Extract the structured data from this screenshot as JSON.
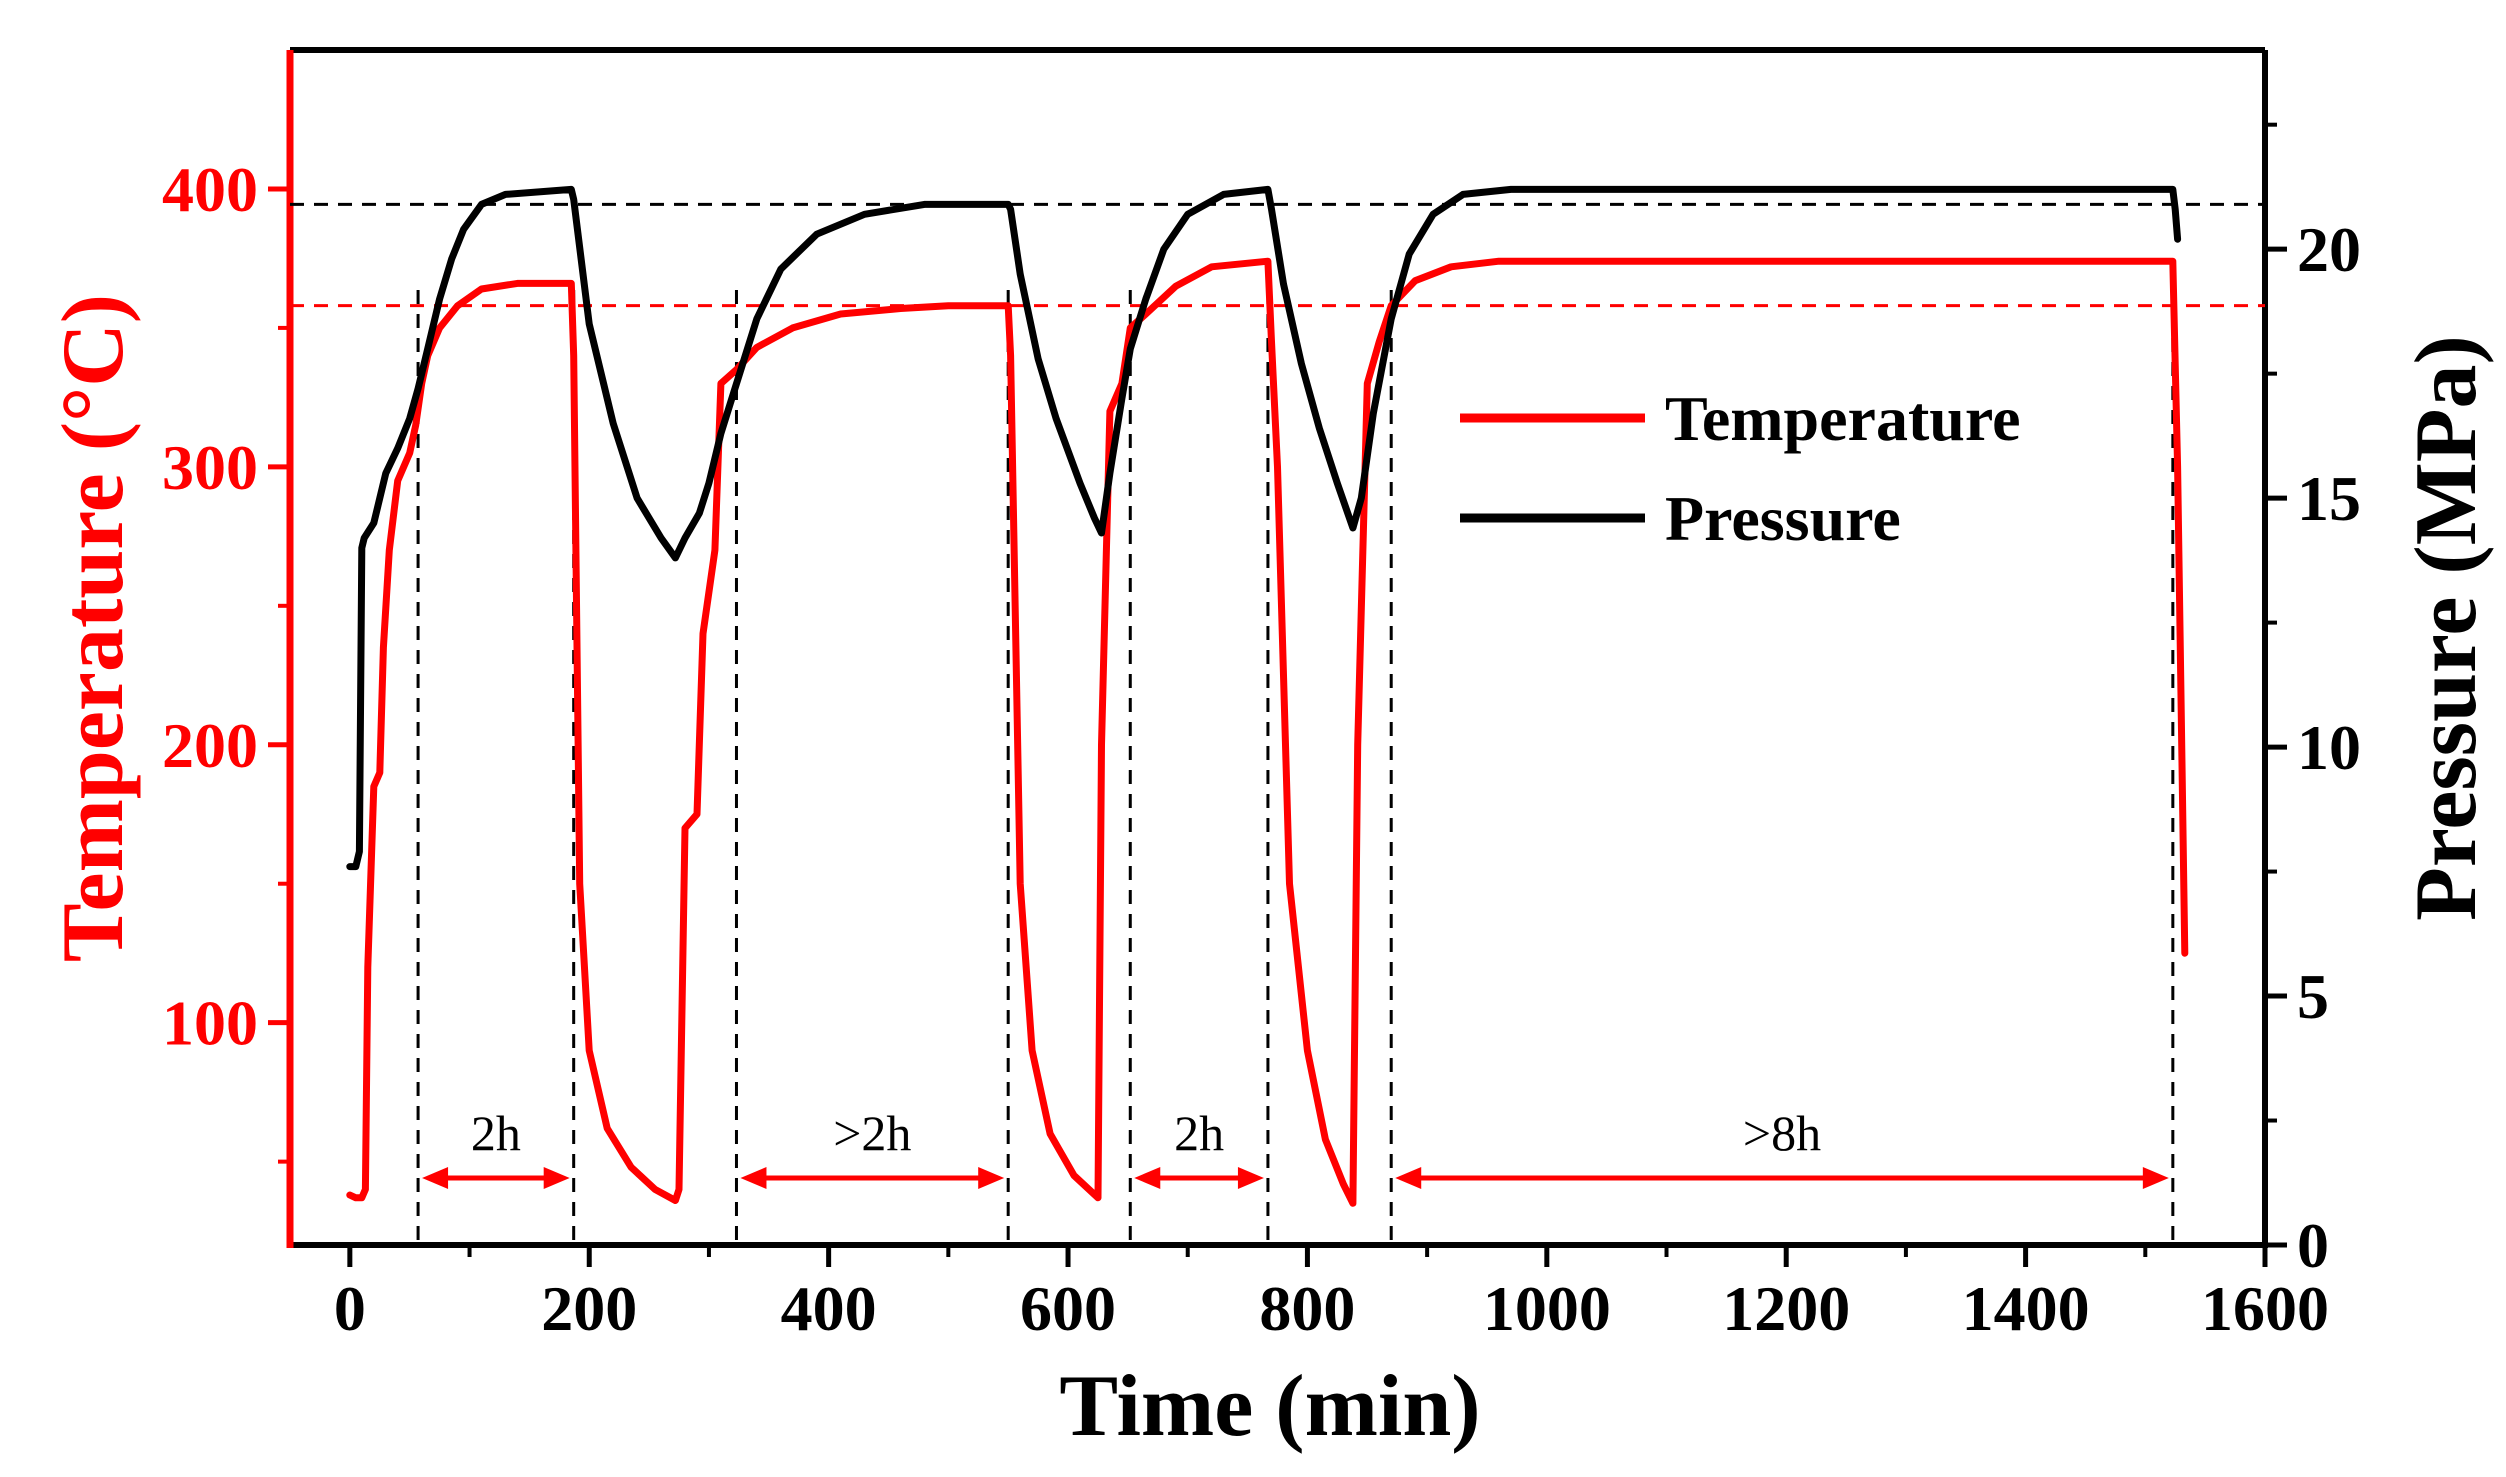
{
  "chart_data": {
    "type": "line",
    "xlabel": "Time (min)",
    "ylabel_left": "Temperature (°C)",
    "ylabel_right": "Pressure (MPa)",
    "xlim": [
      -50,
      1600
    ],
    "ylim_left": [
      20,
      450
    ],
    "ylim_right": [
      0,
      24
    ],
    "x_ticks": [
      0,
      200,
      400,
      600,
      800,
      1000,
      1200,
      1400,
      1600
    ],
    "y_left_ticks": [
      100,
      200,
      300,
      400
    ],
    "y_right_ticks": [
      0,
      5,
      10,
      15,
      20
    ],
    "colors": {
      "temperature": "#ff0000",
      "pressure": "#000000",
      "axes": "#000000",
      "left_axis": "#ff0000"
    },
    "legend": {
      "position": "upper-right-inner",
      "entries": [
        "Temperature",
        "Pressure"
      ]
    },
    "reference_lines": [
      {
        "axis": "left",
        "value": 358,
        "color": "#ff0000",
        "style": "dashed"
      },
      {
        "axis": "right",
        "value": 20.9,
        "color": "#000000",
        "style": "dashed"
      }
    ],
    "marker_lines_x": [
      57,
      187,
      323,
      550,
      652,
      767,
      870,
      1523
    ],
    "annotations": [
      {
        "label": "2h",
        "x_start": 57,
        "x_end": 187
      },
      {
        "label": ">2h",
        "x_start": 323,
        "x_end": 550
      },
      {
        "label": "2h",
        "x_start": 652,
        "x_end": 767
      },
      {
        "label": ">8h",
        "x_start": 870,
        "x_end": 1523
      }
    ],
    "series": [
      {
        "name": "Temperature",
        "axis": "left",
        "points": [
          [
            0,
            38
          ],
          [
            5,
            37
          ],
          [
            10,
            37
          ],
          [
            13,
            40
          ],
          [
            15,
            120
          ],
          [
            20,
            185
          ],
          [
            25,
            190
          ],
          [
            28,
            235
          ],
          [
            33,
            270
          ],
          [
            40,
            295
          ],
          [
            50,
            305
          ],
          [
            55,
            315
          ],
          [
            60,
            330
          ],
          [
            65,
            340
          ],
          [
            75,
            350
          ],
          [
            90,
            358
          ],
          [
            110,
            364
          ],
          [
            140,
            366
          ],
          [
            185,
            366
          ],
          [
            187,
            340
          ],
          [
            192,
            150
          ],
          [
            200,
            90
          ],
          [
            215,
            62
          ],
          [
            235,
            48
          ],
          [
            255,
            40
          ],
          [
            272,
            36
          ],
          [
            275,
            40
          ],
          [
            280,
            170
          ],
          [
            290,
            175
          ],
          [
            295,
            240
          ],
          [
            305,
            270
          ],
          [
            310,
            330
          ],
          [
            323,
            335
          ],
          [
            340,
            343
          ],
          [
            370,
            350
          ],
          [
            410,
            355
          ],
          [
            460,
            357
          ],
          [
            500,
            358
          ],
          [
            550,
            358
          ],
          [
            552,
            340
          ],
          [
            560,
            150
          ],
          [
            570,
            90
          ],
          [
            585,
            60
          ],
          [
            605,
            45
          ],
          [
            625,
            37
          ],
          [
            628,
            200
          ],
          [
            635,
            320
          ],
          [
            645,
            330
          ],
          [
            652,
            350
          ],
          [
            665,
            355
          ],
          [
            690,
            365
          ],
          [
            720,
            372
          ],
          [
            767,
            374
          ],
          [
            770,
            345
          ],
          [
            775,
            300
          ],
          [
            785,
            150
          ],
          [
            800,
            90
          ],
          [
            815,
            58
          ],
          [
            830,
            42
          ],
          [
            838,
            35
          ],
          [
            842,
            200
          ],
          [
            850,
            330
          ],
          [
            860,
            345
          ],
          [
            870,
            358
          ],
          [
            890,
            367
          ],
          [
            920,
            372
          ],
          [
            960,
            374
          ],
          [
            1500,
            374
          ],
          [
            1523,
            374
          ],
          [
            1527,
            300
          ],
          [
            1533,
            125
          ]
        ]
      },
      {
        "name": "Pressure",
        "axis": "right",
        "points": [
          [
            0,
            7.6
          ],
          [
            5,
            7.6
          ],
          [
            8,
            7.9
          ],
          [
            10,
            14.0
          ],
          [
            12,
            14.2
          ],
          [
            20,
            14.5
          ],
          [
            25,
            15.0
          ],
          [
            30,
            15.5
          ],
          [
            40,
            16.0
          ],
          [
            50,
            16.6
          ],
          [
            57,
            17.2
          ],
          [
            65,
            18.0
          ],
          [
            75,
            19.0
          ],
          [
            85,
            19.8
          ],
          [
            95,
            20.4
          ],
          [
            110,
            20.9
          ],
          [
            130,
            21.1
          ],
          [
            185,
            21.2
          ],
          [
            187,
            21.0
          ],
          [
            200,
            18.5
          ],
          [
            220,
            16.5
          ],
          [
            240,
            15.0
          ],
          [
            260,
            14.2
          ],
          [
            272,
            13.8
          ],
          [
            280,
            14.2
          ],
          [
            292,
            14.7
          ],
          [
            300,
            15.3
          ],
          [
            310,
            16.3
          ],
          [
            323,
            17.3
          ],
          [
            340,
            18.6
          ],
          [
            360,
            19.6
          ],
          [
            390,
            20.3
          ],
          [
            430,
            20.7
          ],
          [
            480,
            20.9
          ],
          [
            550,
            20.9
          ],
          [
            552,
            20.8
          ],
          [
            560,
            19.5
          ],
          [
            575,
            17.8
          ],
          [
            590,
            16.6
          ],
          [
            610,
            15.3
          ],
          [
            622,
            14.6
          ],
          [
            628,
            14.3
          ],
          [
            635,
            15.5
          ],
          [
            645,
            17.0
          ],
          [
            652,
            18.0
          ],
          [
            665,
            19.0
          ],
          [
            680,
            20.0
          ],
          [
            700,
            20.7
          ],
          [
            730,
            21.1
          ],
          [
            767,
            21.2
          ],
          [
            770,
            20.8
          ],
          [
            780,
            19.3
          ],
          [
            795,
            17.7
          ],
          [
            810,
            16.4
          ],
          [
            825,
            15.3
          ],
          [
            838,
            14.4
          ],
          [
            845,
            15.0
          ],
          [
            855,
            16.7
          ],
          [
            870,
            18.6
          ],
          [
            885,
            19.9
          ],
          [
            905,
            20.7
          ],
          [
            930,
            21.1
          ],
          [
            970,
            21.2
          ],
          [
            1523,
            21.2
          ],
          [
            1525,
            20.8
          ],
          [
            1527,
            20.2
          ]
        ]
      }
    ]
  }
}
